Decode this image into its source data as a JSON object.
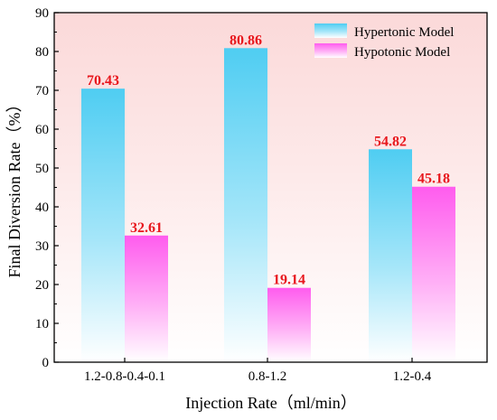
{
  "chart_data": {
    "type": "bar",
    "categories": [
      "1.2-0.8-0.4-0.1",
      "0.8-1.2",
      "1.2-0.4"
    ],
    "series": [
      {
        "name": "Hypertonic Model",
        "values": [
          70.43,
          80.86,
          54.82
        ],
        "color": "#5fd3f3"
      },
      {
        "name": "Hypotonic Model",
        "values": [
          32.61,
          19.14,
          45.18
        ],
        "color": "#ff6cf0"
      }
    ],
    "data_labels": {
      "hypertonic": [
        "70.43",
        "80.86",
        "54.82"
      ],
      "hypotonic": [
        "32.61",
        "19.14",
        "45.18"
      ]
    },
    "xlabel": "Injection Rate（ml/min）",
    "ylabel": "Final Diversion Rate（%）",
    "ylim": [
      0,
      90
    ],
    "yticks": [
      "0",
      "10",
      "20",
      "30",
      "40",
      "50",
      "60",
      "70",
      "80",
      "90"
    ],
    "grid": false,
    "legend_position": "top-right",
    "background_gradient": [
      "#fbd9d9",
      "#ffffff"
    ],
    "label_color": "#e8171d"
  }
}
